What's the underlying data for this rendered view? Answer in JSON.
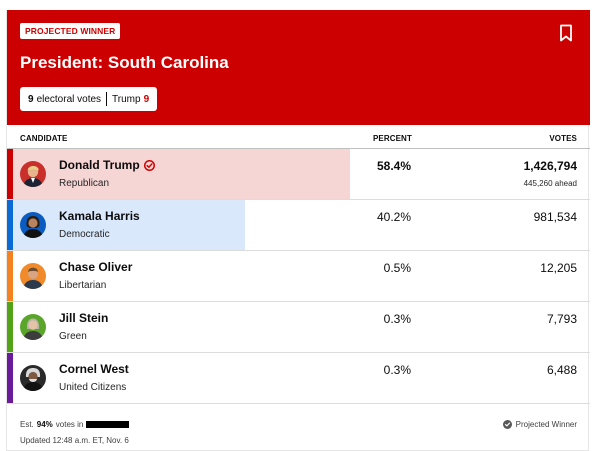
{
  "header": {
    "badge": "PROJECTED WINNER",
    "title": "President: South Carolina",
    "electoral": {
      "count": "9",
      "label": "electoral votes",
      "winner": "Trump",
      "winner_votes": "9"
    }
  },
  "columns": {
    "candidate": "CANDIDATE",
    "percent": "PERCENT",
    "votes": "VOTES"
  },
  "candidates": [
    {
      "name": "Donald Trump",
      "party": "Republican",
      "percent": "58.4%",
      "votes": "1,426,794",
      "ahead": "445,260 ahead",
      "winner": true,
      "share": 58.4,
      "color": "#cc0000",
      "tint": "#f6d5d5"
    },
    {
      "name": "Kamala Harris",
      "party": "Democratic",
      "percent": "40.2%",
      "votes": "981,534",
      "share": 40.2,
      "color": "#0a6bd6",
      "tint": "#d9e8fb"
    },
    {
      "name": "Chase Oliver",
      "party": "Libertarian",
      "percent": "0.5%",
      "votes": "12,205",
      "share": 0.5,
      "color": "#f58220"
    },
    {
      "name": "Jill Stein",
      "party": "Green",
      "percent": "0.3%",
      "votes": "7,793",
      "share": 0.3,
      "color": "#53a318"
    },
    {
      "name": "Cornel West",
      "party": "United Citizens",
      "percent": "0.3%",
      "votes": "6,488",
      "share": 0.3,
      "color": "#6a1b9a"
    }
  ],
  "footer": {
    "est_prefix": "Est.",
    "est_percent": "94%",
    "est_suffix": "votes in",
    "updated": "Updated 12:48 a.m. ET, Nov. 6",
    "legend": "Projected Winner"
  }
}
